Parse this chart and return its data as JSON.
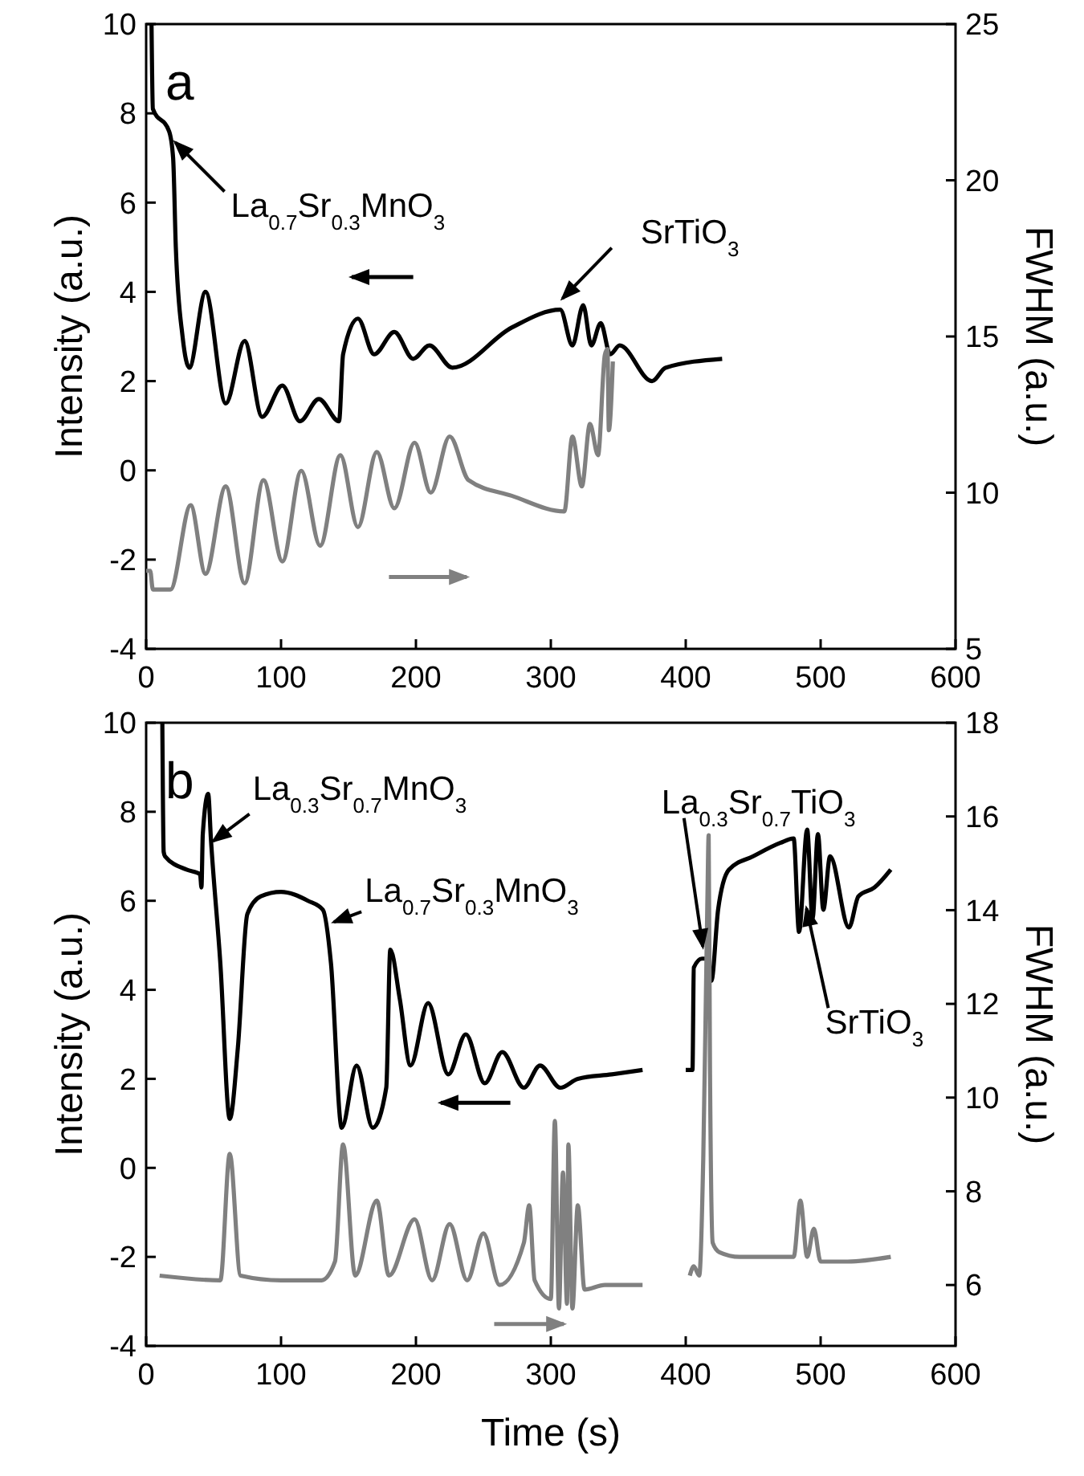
{
  "chart_data": [
    {
      "type": "line",
      "title": "a",
      "ylabel": "Intensity (a.u.)",
      "y2label": "FWHM (a.u.)",
      "xlim": [
        0,
        600
      ],
      "xticks": [
        0,
        100,
        200,
        300,
        400,
        500,
        600
      ],
      "ylim": [
        -4,
        10
      ],
      "yticks": [
        -4,
        -2,
        0,
        2,
        4,
        6,
        8,
        10
      ],
      "y2lim": [
        5,
        25
      ],
      "y2ticks": [
        5,
        10,
        15,
        20,
        25
      ],
      "series": [
        {
          "color": "#000000",
          "x": [
            4,
            5,
            17,
            20,
            22,
            27,
            32,
            44,
            59,
            73,
            86,
            101,
            114,
            128,
            143,
            146,
            157,
            169,
            184,
            198,
            210,
            227,
            271,
            307,
            316,
            324,
            330,
            337,
            344,
            351,
            375,
            385,
            427
          ],
          "values": [
            10,
            8.1,
            7.6,
            7.0,
            5.0,
            3.0,
            2.3,
            4.0,
            1.5,
            2.9,
            1.2,
            1.9,
            1.1,
            1.6,
            1.1,
            2.6,
            3.4,
            2.6,
            3.1,
            2.5,
            2.8,
            2.3,
            3.2,
            3.6,
            2.8,
            3.7,
            2.8,
            3.3,
            2.6,
            2.8,
            2.0,
            2.3,
            2.5
          ]
        },
        {
          "color": "#808080",
          "axis": "y2",
          "x": [
            0,
            3,
            5,
            18,
            33,
            44,
            59,
            73,
            87,
            101,
            115,
            129,
            144,
            157,
            171,
            184,
            199,
            211,
            225,
            239,
            271,
            310,
            316,
            323,
            329,
            335,
            340,
            342,
            343,
            346
          ],
          "values": [
            7.5,
            7.5,
            6.9,
            6.9,
            9.6,
            7.4,
            10.2,
            7.1,
            10.4,
            7.8,
            10.7,
            8.3,
            11.2,
            8.9,
            11.3,
            9.5,
            11.6,
            10.0,
            11.8,
            10.4,
            9.9,
            9.4,
            11.8,
            10.2,
            12.2,
            11.2,
            14.4,
            14.6,
            12.0,
            14.2
          ]
        }
      ],
      "annotations": [
        {
          "text": "La$_{0.7}$Sr$_{0.3}$MnO$_{3}$",
          "x": 20,
          "y": 7.4
        },
        {
          "text": "SrTiO$_{3}$",
          "x": 307,
          "y": 3.8
        }
      ]
    },
    {
      "type": "line",
      "title": "b",
      "xlabel": "Time (s)",
      "ylabel": "Intensity (a.u.)",
      "y2label": "FWHM (a.u.)",
      "xlim": [
        0,
        600
      ],
      "xticks": [
        0,
        100,
        200,
        300,
        400,
        500,
        600
      ],
      "ylim": [
        -4,
        10
      ],
      "yticks": [
        -4,
        -2,
        0,
        2,
        4,
        6,
        8,
        10
      ],
      "y2lim": [
        4.7,
        18
      ],
      "y2ticks": [
        6,
        8,
        10,
        12,
        14,
        16,
        18
      ],
      "series": [
        {
          "color": "#000000",
          "x": [
            12,
            13,
            14,
            30,
            40,
            41,
            42,
            46,
            48,
            55,
            62,
            68,
            75,
            85,
            100,
            120,
            131,
            137,
            145,
            156,
            168,
            178,
            181,
            188,
            196,
            209,
            224,
            237,
            251,
            264,
            280,
            292,
            307,
            320,
            345,
            368
          ],
          "values": [
            10,
            7.1,
            7.0,
            6.7,
            6.6,
            6.3,
            7.5,
            8.4,
            7.4,
            4.6,
            1.1,
            2.7,
            5.7,
            6.1,
            6.2,
            6.0,
            5.8,
            4.6,
            0.9,
            2.3,
            0.9,
            1.8,
            4.9,
            3.8,
            2.3,
            3.7,
            2.1,
            3.0,
            1.9,
            2.6,
            1.8,
            2.3,
            1.8,
            2.0,
            2.1,
            2.2
          ]
        },
        {
          "color": "#000000",
          "x": [
            400,
            405,
            406,
            412,
            416,
            419,
            424,
            432,
            450,
            470,
            480,
            484,
            490,
            494,
            498,
            502,
            507,
            521,
            528,
            540,
            552
          ],
          "values": [
            2.2,
            2.2,
            4.5,
            4.7,
            4.7,
            4.2,
            5.8,
            6.7,
            7.0,
            7.3,
            7.4,
            5.3,
            7.6,
            5.6,
            7.5,
            5.8,
            7.0,
            5.4,
            6.1,
            6.3,
            6.7
          ]
        },
        {
          "color": "#808080",
          "axis": "y2",
          "x": [
            10,
            55,
            62,
            70,
            100,
            130,
            140,
            146,
            155,
            171,
            180,
            199,
            212,
            225,
            238,
            250,
            262,
            280,
            284,
            288,
            300,
            303,
            306,
            309,
            312,
            313,
            316,
            320,
            325,
            340,
            368
          ],
          "values": [
            6.2,
            6.1,
            8.8,
            6.2,
            6.1,
            6.1,
            6.5,
            9.0,
            6.2,
            7.8,
            6.2,
            7.4,
            6.1,
            7.3,
            6.1,
            7.1,
            6.0,
            6.9,
            7.7,
            6.1,
            5.7,
            9.5,
            5.5,
            8.4,
            5.6,
            9.0,
            5.5,
            7.7,
            5.9,
            6.0,
            6.0
          ]
        },
        {
          "color": "#808080",
          "axis": "y2",
          "x": [
            403,
            406,
            410,
            413,
            416,
            417,
            418,
            420,
            425,
            440,
            480,
            485,
            490,
            495,
            500,
            520,
            552
          ],
          "values": [
            6.2,
            6.4,
            6.2,
            8.7,
            14.1,
            15.6,
            10.5,
            6.9,
            6.7,
            6.6,
            6.6,
            7.8,
            6.6,
            7.2,
            6.5,
            6.5,
            6.6
          ]
        }
      ],
      "annotations": [
        {
          "text": "La$_{0.3}$Sr$_{0.7}$MnO$_{3}$",
          "x": 48,
          "y": 7.3
        },
        {
          "text": "La$_{0.7}$Sr$_{0.3}$MnO$_{3}$",
          "x": 137,
          "y": 5.5
        },
        {
          "text": "La$_{0.3}$Sr$_{0.7}$TiO$_{3}$",
          "x": 413,
          "y": 4.9
        },
        {
          "text": "SrTiO$_{3}$",
          "x": 489,
          "y": 5.9
        }
      ]
    }
  ]
}
